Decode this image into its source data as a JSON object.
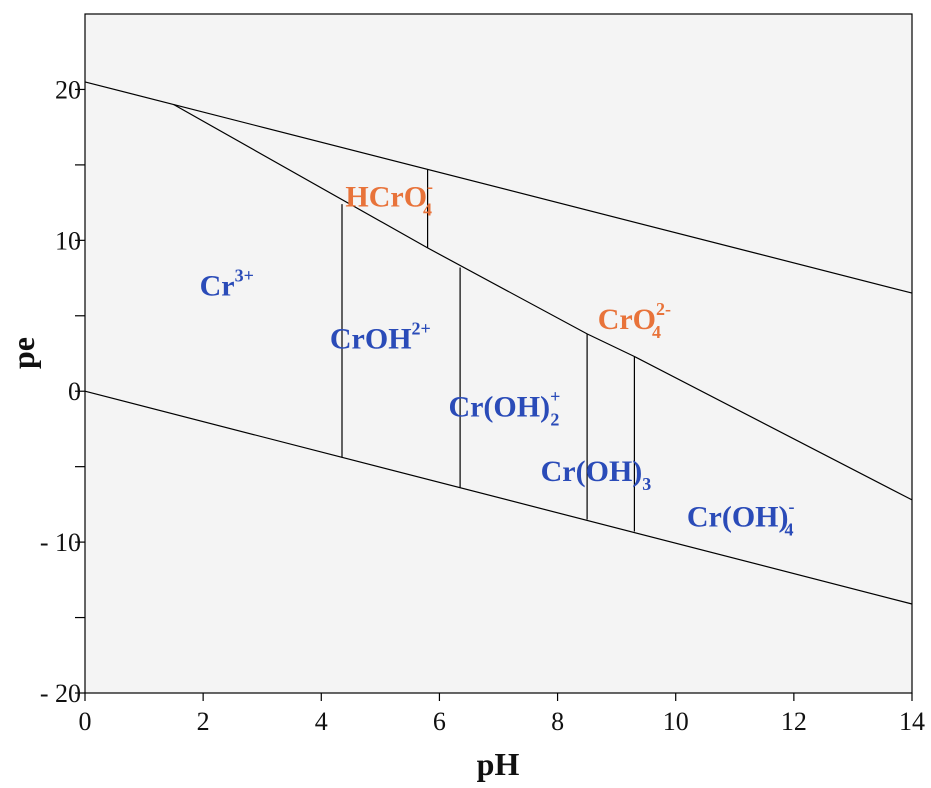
{
  "chart_data": {
    "type": "line",
    "xlabel": "pH",
    "ylabel": "pe",
    "xlim": [
      0,
      14
    ],
    "ylim": [
      -20,
      25
    ],
    "x_ticks": [
      0,
      2,
      4,
      6,
      8,
      10,
      12,
      14
    ],
    "x_tick_labels": [
      "0",
      "2",
      "4",
      "6",
      "8",
      "10",
      "12",
      "14"
    ],
    "y_ticks": [
      20,
      10,
      0,
      -10,
      -20
    ],
    "y_tick_labels": [
      "20",
      "10",
      "0",
      "- 10",
      "- 20"
    ],
    "y_minor_ticks": [
      15,
      5,
      -5,
      -15
    ],
    "boundaries": [
      {
        "points": [
          [
            0,
            20.5
          ],
          [
            14,
            6.5
          ]
        ]
      },
      {
        "points": [
          [
            0,
            0
          ],
          [
            14,
            -14.1
          ]
        ]
      },
      {
        "points": [
          [
            1.5,
            19.0
          ],
          [
            5.8,
            9.5
          ],
          [
            8.5,
            3.8
          ],
          [
            9.3,
            2.3
          ],
          [
            14,
            -7.2
          ]
        ]
      },
      {
        "points": [
          [
            4.35,
            12.4
          ],
          [
            4.35,
            -4.4
          ]
        ]
      },
      {
        "points": [
          [
            5.8,
            14.7
          ],
          [
            5.8,
            9.5
          ]
        ]
      },
      {
        "points": [
          [
            6.35,
            8.2
          ],
          [
            6.35,
            -6.4
          ]
        ]
      },
      {
        "points": [
          [
            8.5,
            3.8
          ],
          [
            8.5,
            -8.5
          ]
        ]
      },
      {
        "points": [
          [
            9.3,
            2.3
          ],
          [
            9.3,
            -9.3
          ]
        ]
      }
    ],
    "colors": {
      "plot_bg": "#f4f4f4",
      "line": "#000000",
      "cr3_species": "#2a4bb8",
      "cr6_species": "#e8733a"
    },
    "species_labels": [
      {
        "base": "Cr",
        "sup": "3+",
        "sub": "",
        "x": 2.4,
        "y": 7.0,
        "group": "cr3"
      },
      {
        "base": "CrOH",
        "sup": "2+",
        "sub": "",
        "x": 5.0,
        "y": 3.5,
        "group": "cr3"
      },
      {
        "base": "Cr(OH)",
        "sup": "+",
        "sub": "2",
        "x": 7.1,
        "y": -1.0,
        "group": "cr3"
      },
      {
        "base": "Cr(OH)",
        "sup": "",
        "sub": "3",
        "x": 8.65,
        "y": -5.3,
        "group": "cr3"
      },
      {
        "base": "Cr(OH)",
        "sup": "-",
        "sub": "4",
        "x": 11.1,
        "y": -8.3,
        "group": "cr3"
      },
      {
        "base": "HCrO",
        "sup": "-",
        "sub": "4",
        "x": 5.15,
        "y": 12.9,
        "group": "cr6"
      },
      {
        "base": "CrO",
        "sup": "2-",
        "sub": "4",
        "x": 9.3,
        "y": 4.8,
        "group": "cr6"
      }
    ]
  }
}
